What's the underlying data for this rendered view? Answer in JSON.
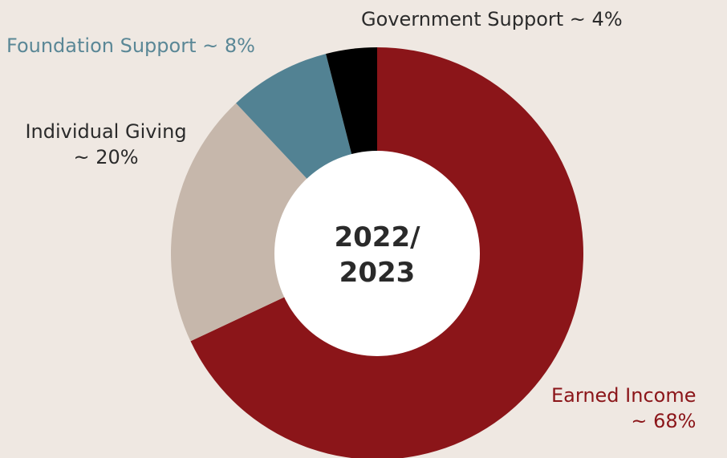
{
  "chart_data": {
    "type": "pie",
    "variant": "donut",
    "center_label": [
      "2022/",
      "2023"
    ],
    "slices": [
      {
        "name": "Earned Income",
        "value": 68,
        "label_lines": [
          "Earned Income",
          "~ 68%"
        ],
        "color": "#8b1519",
        "label_color": "#8b1519"
      },
      {
        "name": "Individual Giving",
        "value": 20,
        "label_lines": [
          "Individual Giving",
          "~ 20%"
        ],
        "color": "#c6b7ab",
        "label_color": "#2b2b2b"
      },
      {
        "name": "Foundation Support",
        "value": 8,
        "label_lines": [
          "Foundation Support ~ 8%"
        ],
        "color": "#528293",
        "label_color": "#5a8796"
      },
      {
        "name": "Government Support",
        "value": 4,
        "label_lines": [
          "Government Support ~ 4%"
        ],
        "color": "#000000",
        "label_color": "#2b2b2b"
      }
    ],
    "start": "12 o'clock",
    "direction": "clockwise"
  }
}
